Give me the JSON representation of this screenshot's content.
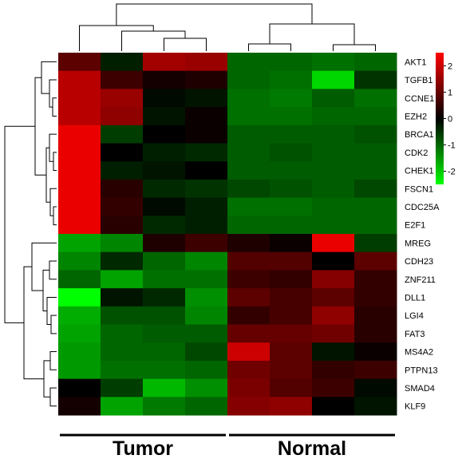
{
  "chart_data": {
    "type": "heatmap",
    "rows": [
      "AKT1",
      "TGFB1",
      "CCNE1",
      "EZH2",
      "BRCA1",
      "CDK2",
      "CHEK1",
      "FSCN1",
      "CDC25A",
      "E2F1",
      "MREG",
      "CDH23",
      "ZNF211",
      "DLL1",
      "LGI4",
      "FAT3",
      "MS4A2",
      "PTPN13",
      "SMAD4",
      "KLF9"
    ],
    "columns": [
      {
        "group": "Tumor"
      },
      {
        "group": "Tumor"
      },
      {
        "group": "Tumor"
      },
      {
        "group": "Tumor"
      },
      {
        "group": "Normal"
      },
      {
        "group": "Normal"
      },
      {
        "group": "Normal"
      },
      {
        "group": "Normal"
      }
    ],
    "groups": [
      {
        "label": "Tumor",
        "start": 0,
        "end": 3
      },
      {
        "label": "Normal",
        "start": 4,
        "end": 7
      }
    ],
    "values": [
      [
        0.9,
        -0.3,
        1.6,
        1.5,
        -1.0,
        -1.0,
        -1.1,
        -1.0
      ],
      [
        1.8,
        0.6,
        0.2,
        0.3,
        -1.0,
        -1.1,
        -2.1,
        -0.5
      ],
      [
        1.8,
        1.5,
        -0.1,
        -0.2,
        -1.1,
        -1.2,
        -0.9,
        -1.1
      ],
      [
        1.8,
        1.4,
        -0.2,
        0.1,
        -1.1,
        -1.1,
        -1.0,
        -1.0
      ],
      [
        2.3,
        -0.6,
        0.0,
        0.1,
        -0.9,
        -0.9,
        -0.9,
        -0.8
      ],
      [
        2.3,
        0.0,
        -0.3,
        -0.4,
        -0.9,
        -0.8,
        -0.9,
        -0.9
      ],
      [
        2.3,
        -0.3,
        -0.2,
        0.0,
        -0.9,
        -0.9,
        -0.9,
        -0.9
      ],
      [
        2.3,
        0.4,
        -0.4,
        -0.5,
        -0.7,
        -0.8,
        -0.9,
        -0.7
      ],
      [
        2.3,
        0.5,
        -0.1,
        -0.3,
        -1.1,
        -1.1,
        -1.0,
        -1.0
      ],
      [
        2.3,
        0.4,
        -0.4,
        -0.3,
        -1.0,
        -1.0,
        -1.0,
        -1.0
      ],
      [
        -1.6,
        -1.3,
        0.3,
        0.6,
        0.3,
        0.1,
        2.3,
        -0.6
      ],
      [
        -1.3,
        -0.4,
        -1.0,
        -1.3,
        0.8,
        0.8,
        0.0,
        0.9
      ],
      [
        -1.0,
        -1.6,
        -1.1,
        -1.1,
        0.6,
        0.5,
        1.3,
        0.5
      ],
      [
        -2.6,
        -0.2,
        -0.4,
        -1.4,
        0.9,
        0.7,
        0.9,
        0.5
      ],
      [
        -1.7,
        -0.8,
        -0.8,
        -1.3,
        0.5,
        0.7,
        1.4,
        0.4
      ],
      [
        -1.6,
        -1.0,
        -0.9,
        -0.9,
        1.0,
        1.0,
        1.1,
        0.4
      ],
      [
        -1.5,
        -1.0,
        -1.0,
        -0.7,
        2.0,
        0.9,
        -0.2,
        0.1
      ],
      [
        -1.5,
        -1.1,
        -1.1,
        -1.0,
        1.1,
        0.9,
        0.5,
        0.6
      ],
      [
        0.0,
        -0.6,
        -1.8,
        -1.4,
        1.2,
        0.8,
        0.6,
        -0.1
      ],
      [
        0.2,
        -1.6,
        -1.2,
        -1.0,
        1.3,
        1.4,
        0.0,
        -0.2
      ]
    ],
    "color_scale": {
      "min": -2.5,
      "max": 2.5,
      "low_color": "#00ff00",
      "mid_color": "#000000",
      "high_color": "#ff0000",
      "ticks": [
        2,
        1,
        0,
        -1,
        -2
      ]
    },
    "legend_position": "top-right"
  }
}
